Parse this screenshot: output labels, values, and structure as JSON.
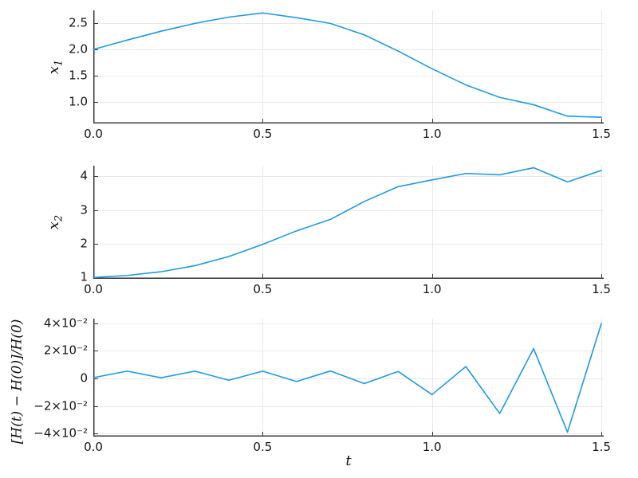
{
  "figure": {
    "background": "#ffffff",
    "series_color": "#1E9BE3",
    "grid_color": "#E9E9E9",
    "axis_color": "#3a3a3a",
    "tick_label_color": "#151515"
  },
  "chart_data": [
    {
      "type": "line",
      "title": "",
      "ylabel": {
        "text": "x",
        "sub": "1"
      },
      "xlabel": "",
      "x": [
        0.0,
        0.1,
        0.2,
        0.3,
        0.4,
        0.5,
        0.6,
        0.7,
        0.8,
        0.9,
        1.0,
        1.1,
        1.2,
        1.3,
        1.4,
        1.5
      ],
      "y": [
        2.0,
        2.18,
        2.35,
        2.5,
        2.62,
        2.7,
        2.61,
        2.5,
        2.28,
        1.97,
        1.63,
        1.32,
        1.08,
        0.94,
        0.72,
        0.7
      ],
      "xlim": [
        0,
        1.507
      ],
      "ylim": [
        0.58,
        2.75
      ],
      "xticks": {
        "values": [
          0.0,
          0.5,
          1.0,
          1.5
        ],
        "labels": [
          "0.0",
          "0.5",
          "1.0",
          "1.5"
        ]
      },
      "yticks": {
        "values": [
          1.0,
          1.5,
          2.0,
          2.5
        ],
        "labels": [
          "1.0",
          "1.5",
          "2.0",
          "2.5"
        ]
      },
      "grid": true,
      "legend": "none"
    },
    {
      "type": "line",
      "title": "",
      "ylabel": {
        "text": "x",
        "sub": "2"
      },
      "xlabel": "",
      "x": [
        0.0,
        0.1,
        0.2,
        0.3,
        0.4,
        0.5,
        0.6,
        0.7,
        0.8,
        0.9,
        1.0,
        1.1,
        1.2,
        1.3,
        1.4,
        1.5
      ],
      "y": [
        1.0,
        1.06,
        1.17,
        1.35,
        1.62,
        1.98,
        2.38,
        2.72,
        3.25,
        3.69,
        3.89,
        4.08,
        4.04,
        4.25,
        3.83,
        4.17
      ],
      "xlim": [
        0,
        1.507
      ],
      "ylim": [
        0.96,
        4.31
      ],
      "xticks": {
        "values": [
          0.0,
          0.5,
          1.0,
          1.5
        ],
        "labels": [
          "0.0",
          "0.5",
          "1.0",
          "1.5"
        ]
      },
      "yticks": {
        "values": [
          1,
          2,
          3,
          4
        ],
        "labels": [
          "1",
          "2",
          "3",
          "4"
        ]
      },
      "grid": true,
      "legend": "none"
    },
    {
      "type": "line",
      "title": "",
      "ylabel": {
        "text": "[H(t) − H(0)]/H(0)",
        "sub": ""
      },
      "xlabel": "t",
      "x": [
        0.0,
        0.1,
        0.2,
        0.3,
        0.4,
        0.5,
        0.6,
        0.7,
        0.8,
        0.9,
        1.0,
        1.1,
        1.2,
        1.3,
        1.4,
        1.5
      ],
      "y": [
        0.0005,
        0.0052,
        0.0004,
        0.0052,
        -0.0014,
        0.0052,
        -0.0023,
        0.0053,
        -0.0038,
        0.005,
        -0.0118,
        0.0085,
        -0.0255,
        0.0215,
        -0.039,
        0.0396
      ],
      "xlim": [
        0,
        1.507
      ],
      "ylim": [
        -0.0422,
        0.0432
      ],
      "xticks": {
        "values": [
          0.0,
          0.5,
          1.0,
          1.5
        ],
        "labels": [
          "0.0",
          "0.5",
          "1.0",
          "1.5"
        ]
      },
      "yticks": {
        "values": [
          -0.04,
          -0.02,
          0,
          0.02,
          0.04
        ],
        "labels": [
          "−4×10⁻²",
          "−2×10⁻²",
          "0",
          "2×10⁻²",
          "4×10⁻²"
        ]
      },
      "grid": true,
      "legend": "none"
    }
  ]
}
